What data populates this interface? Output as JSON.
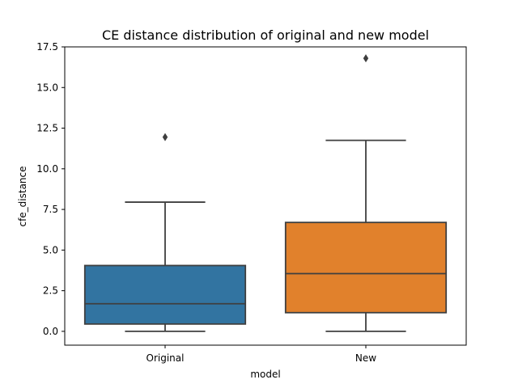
{
  "chart_data": {
    "type": "box",
    "title": "CE distance distribution of original and new model",
    "xlabel": "model",
    "ylabel": "cfe_distance",
    "categories": [
      "Original",
      "New"
    ],
    "ylim": [
      -0.85,
      17.5
    ],
    "yticks": [
      0.0,
      2.5,
      5.0,
      7.5,
      10.0,
      12.5,
      15.0,
      17.5
    ],
    "ytick_labels": [
      "0.0",
      "2.5",
      "5.0",
      "7.5",
      "10.0",
      "12.5",
      "15.0",
      "17.5"
    ],
    "grid": false,
    "legend": "none",
    "boxes": [
      {
        "category": "Original",
        "color": "#3274a1",
        "whisker_low": 0.0,
        "q1": 0.45,
        "median": 1.7,
        "q3": 4.05,
        "whisker_high": 7.95,
        "outliers": [
          11.95
        ]
      },
      {
        "category": "New",
        "color": "#e1812c",
        "whisker_low": 0.0,
        "q1": 1.15,
        "median": 3.55,
        "q3": 6.7,
        "whisker_high": 11.75,
        "outliers": [
          16.8
        ]
      }
    ]
  }
}
